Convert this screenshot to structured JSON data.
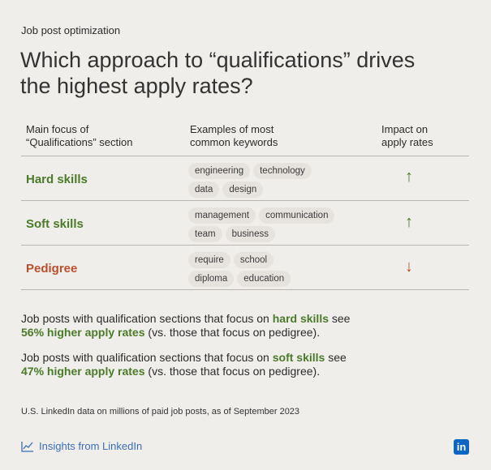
{
  "eyebrow": "Job post optimization",
  "headline": {
    "line1": "Which approach to “qualifications” drives",
    "line2": "the highest apply rates?"
  },
  "columns": {
    "focus": [
      "Main focus of",
      "“Qualifications” section"
    ],
    "keywords": [
      "Examples of most",
      "common keywords"
    ],
    "impact": [
      "Impact on",
      "apply rates"
    ]
  },
  "rows": [
    {
      "label": "Hard skills",
      "chips": [
        [
          "engineering",
          "technology"
        ],
        [
          "data",
          "design"
        ]
      ],
      "impact": "↑",
      "impact_direction": "up"
    },
    {
      "label": "Soft skills",
      "chips": [
        [
          "management",
          "communication"
        ],
        [
          "team",
          "business"
        ]
      ],
      "impact": "↑",
      "impact_direction": "up"
    },
    {
      "label": "Pedigree",
      "chips": [
        [
          "require",
          "school"
        ],
        [
          "diploma",
          "education"
        ]
      ],
      "impact": "↓",
      "impact_direction": "down"
    }
  ],
  "findings": [
    {
      "pre": "Job posts with qualification sections that focus on ",
      "focus": "hard skills",
      "mid": " see",
      "stat": "56% higher apply rates",
      "post": " (vs. those that focus on pedigree)."
    },
    {
      "pre": "Job posts with qualification sections that focus on ",
      "focus": "soft skills",
      "mid": " see",
      "stat": "47% higher apply rates",
      "post": " (vs. those that focus on pedigree)."
    }
  ],
  "footnote": "U.S. LinkedIn data on millions of paid job posts, as of September 2023",
  "brand": {
    "text": "Insights from LinkedIn",
    "logo": "in"
  },
  "colors": {
    "green": "#4a7a2a",
    "red": "#b8502d",
    "brand_blue": "#0a66c2",
    "background": "#f0eeeb"
  }
}
